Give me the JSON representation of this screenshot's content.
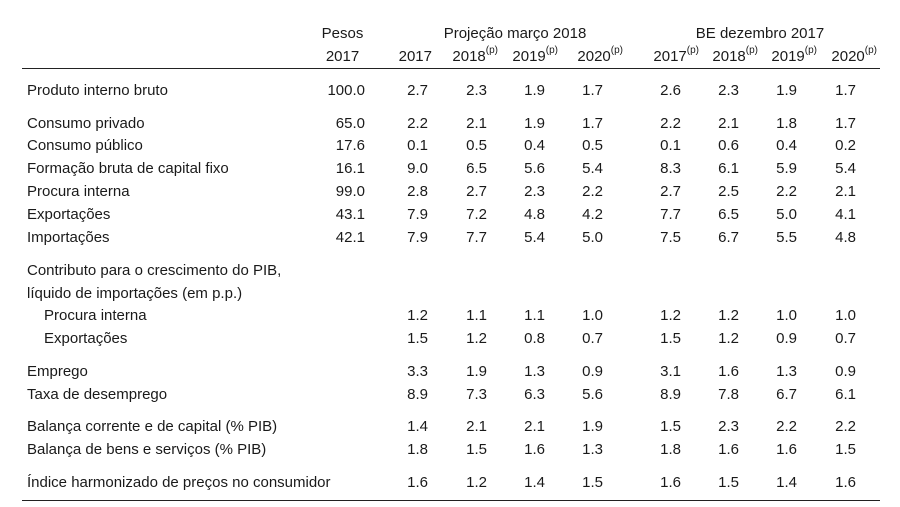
{
  "header": {
    "pesos_line1": "Pesos",
    "pesos_line2": "2017",
    "group_projection": "Projeção março 2018",
    "group_be": "BE dezembro 2017",
    "projection_years": [
      {
        "year": "2017",
        "sup": ""
      },
      {
        "year": "2018",
        "sup": "(p)"
      },
      {
        "year": "2019",
        "sup": "(p)"
      },
      {
        "year": "2020",
        "sup": "(p)"
      }
    ],
    "be_years": [
      {
        "year": "2017",
        "sup": "(p)"
      },
      {
        "year": "2018",
        "sup": "(p)"
      },
      {
        "year": "2019",
        "sup": "(p)"
      },
      {
        "year": "2020",
        "sup": "(p)"
      }
    ]
  },
  "rows": [
    {
      "label": "Produto interno bruto",
      "pesos": "100.0",
      "proj": [
        "2.7",
        "2.3",
        "1.9",
        "1.7"
      ],
      "be": [
        "2.6",
        "2.3",
        "1.9",
        "1.7"
      ]
    },
    {
      "label": "Consumo privado",
      "pesos": "65.0",
      "proj": [
        "2.2",
        "2.1",
        "1.9",
        "1.7"
      ],
      "be": [
        "2.2",
        "2.1",
        "1.8",
        "1.7"
      ]
    },
    {
      "label": "Consumo público",
      "pesos": "17.6",
      "proj": [
        "0.1",
        "0.5",
        "0.4",
        "0.5"
      ],
      "be": [
        "0.1",
        "0.6",
        "0.4",
        "0.2"
      ]
    },
    {
      "label": "Formação bruta de capital fixo",
      "pesos": "16.1",
      "proj": [
        "9.0",
        "6.5",
        "5.6",
        "5.4"
      ],
      "be": [
        "8.3",
        "6.1",
        "5.9",
        "5.4"
      ]
    },
    {
      "label": "Procura interna",
      "pesos": "99.0",
      "proj": [
        "2.8",
        "2.7",
        "2.3",
        "2.2"
      ],
      "be": [
        "2.7",
        "2.5",
        "2.2",
        "2.1"
      ]
    },
    {
      "label": "Exportações",
      "pesos": "43.1",
      "proj": [
        "7.9",
        "7.2",
        "4.8",
        "4.2"
      ],
      "be": [
        "7.7",
        "6.5",
        "5.0",
        "4.1"
      ]
    },
    {
      "label": "Importações",
      "pesos": "42.1",
      "proj": [
        "7.9",
        "7.7",
        "5.4",
        "5.0"
      ],
      "be": [
        "7.5",
        "6.7",
        "5.5",
        "4.8"
      ]
    },
    {
      "label": "Contributo para o crescimento do PIB,",
      "pesos": "",
      "proj": [
        "",
        "",
        "",
        ""
      ],
      "be": [
        "",
        "",
        "",
        ""
      ]
    },
    {
      "label": "líquido de importações (em p.p.)",
      "pesos": "",
      "proj": [
        "",
        "",
        "",
        ""
      ],
      "be": [
        "",
        "",
        "",
        ""
      ]
    },
    {
      "label": "Procura interna",
      "pesos": "",
      "proj": [
        "1.2",
        "1.1",
        "1.1",
        "1.0"
      ],
      "be": [
        "1.2",
        "1.2",
        "1.0",
        "1.0"
      ],
      "indent": true
    },
    {
      "label": "Exportações",
      "pesos": "",
      "proj": [
        "1.5",
        "1.2",
        "0.8",
        "0.7"
      ],
      "be": [
        "1.5",
        "1.2",
        "0.9",
        "0.7"
      ],
      "indent": true
    },
    {
      "label": "Emprego",
      "pesos": "",
      "proj": [
        "3.3",
        "1.9",
        "1.3",
        "0.9"
      ],
      "be": [
        "3.1",
        "1.6",
        "1.3",
        "0.9"
      ]
    },
    {
      "label": "Taxa de desemprego",
      "pesos": "",
      "proj": [
        "8.9",
        "7.3",
        "6.3",
        "5.6"
      ],
      "be": [
        "8.9",
        "7.8",
        "6.7",
        "6.1"
      ]
    },
    {
      "label": "Balança corrente e de capital (% PIB)",
      "pesos": "",
      "proj": [
        "1.4",
        "2.1",
        "2.1",
        "1.9"
      ],
      "be": [
        "1.5",
        "2.3",
        "2.2",
        "2.2"
      ]
    },
    {
      "label": "Balança de bens e serviços (% PIB)",
      "pesos": "",
      "proj": [
        "1.8",
        "1.5",
        "1.6",
        "1.3"
      ],
      "be": [
        "1.8",
        "1.6",
        "1.6",
        "1.5"
      ]
    },
    {
      "label": "Índice  harmonizado de preços no consumidor",
      "pesos": "",
      "proj": [
        "1.6",
        "1.2",
        "1.4",
        "1.5"
      ],
      "be": [
        "1.6",
        "1.5",
        "1.4",
        "1.6"
      ]
    }
  ]
}
